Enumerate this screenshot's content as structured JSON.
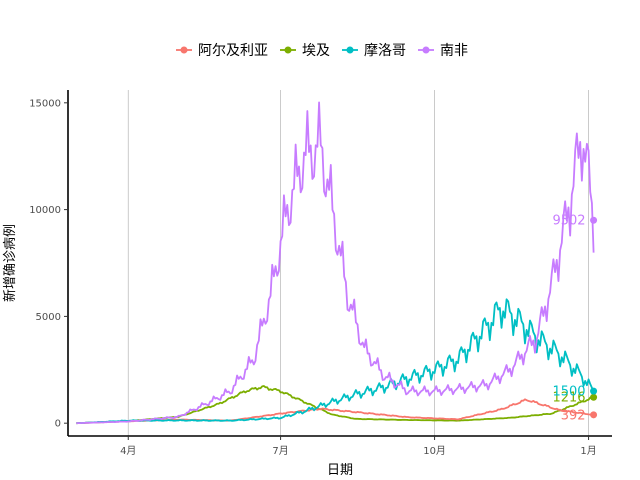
{
  "chart_data": {
    "type": "line",
    "xlabel": "日期",
    "ylabel": "新增确诊病例",
    "x_range": [
      "2020-02-25",
      "2021-01-15"
    ],
    "ylim": [
      -600,
      15600
    ],
    "y_ticks": [
      0,
      5000,
      10000,
      15000
    ],
    "x_ticks": [
      {
        "date": "2020-04-01",
        "label": "4月"
      },
      {
        "date": "2020-07-01",
        "label": "7月"
      },
      {
        "date": "2020-10-01",
        "label": "10月"
      },
      {
        "date": "2021-01-01",
        "label": "1月"
      }
    ],
    "grid": "vertical-major",
    "legend": {
      "position": "top"
    },
    "series": [
      {
        "name": "阿尔及利亚",
        "color": "#F8766D",
        "end_label": "392",
        "points": [
          [
            "2020-03-01",
            0
          ],
          [
            "2020-04-01",
            90
          ],
          [
            "2020-05-01",
            170
          ],
          [
            "2020-06-01",
            120
          ],
          [
            "2020-07-01",
            450
          ],
          [
            "2020-07-25",
            675
          ],
          [
            "2020-08-15",
            520
          ],
          [
            "2020-09-15",
            280
          ],
          [
            "2020-10-15",
            180
          ],
          [
            "2020-11-10",
            650
          ],
          [
            "2020-11-25",
            1100
          ],
          [
            "2020-12-15",
            600
          ],
          [
            "2021-01-04",
            392
          ]
        ]
      },
      {
        "name": "埃及",
        "color": "#7CAE00",
        "end_label": "1216",
        "points": [
          [
            "2020-03-01",
            0
          ],
          [
            "2020-04-01",
            100
          ],
          [
            "2020-05-01",
            300
          ],
          [
            "2020-05-25",
            900
          ],
          [
            "2020-06-10",
            1500
          ],
          [
            "2020-06-20",
            1700
          ],
          [
            "2020-07-01",
            1500
          ],
          [
            "2020-07-15",
            1000
          ],
          [
            "2020-08-01",
            400
          ],
          [
            "2020-08-15",
            200
          ],
          [
            "2020-09-15",
            150
          ],
          [
            "2020-10-15",
            120
          ],
          [
            "2020-11-15",
            250
          ],
          [
            "2020-12-10",
            450
          ],
          [
            "2020-12-25",
            900
          ],
          [
            "2021-01-04",
            1216
          ]
        ]
      },
      {
        "name": "摩洛哥",
        "color": "#00BFC4",
        "end_label": "1500",
        "points": [
          [
            "2020-03-01",
            0
          ],
          [
            "2020-04-01",
            120
          ],
          [
            "2020-05-01",
            130
          ],
          [
            "2020-06-01",
            120
          ],
          [
            "2020-07-01",
            250
          ],
          [
            "2020-07-15",
            550
          ],
          [
            "2020-08-01",
            1000
          ],
          [
            "2020-08-15",
            1350
          ],
          [
            "2020-09-01",
            1700
          ],
          [
            "2020-09-15",
            2100
          ],
          [
            "2020-10-01",
            2500
          ],
          [
            "2020-10-15",
            3000
          ],
          [
            "2020-11-01",
            4500
          ],
          [
            "2020-11-10",
            5400
          ],
          [
            "2020-11-20",
            4800
          ],
          [
            "2020-12-01",
            4000
          ],
          [
            "2020-12-15",
            3200
          ],
          [
            "2020-12-28",
            2200
          ],
          [
            "2021-01-04",
            1500
          ]
        ]
      },
      {
        "name": "南非",
        "color": "#C77CFF",
        "end_label": "9502",
        "points": [
          [
            "2020-03-01",
            0
          ],
          [
            "2020-04-01",
            80
          ],
          [
            "2020-05-01",
            300
          ],
          [
            "2020-05-20",
            1000
          ],
          [
            "2020-06-01",
            1500
          ],
          [
            "2020-06-15",
            3000
          ],
          [
            "2020-06-25",
            6000
          ],
          [
            "2020-07-05",
            10000
          ],
          [
            "2020-07-15",
            12500
          ],
          [
            "2020-07-25",
            13000
          ],
          [
            "2020-08-01",
            10000
          ],
          [
            "2020-08-10",
            6000
          ],
          [
            "2020-08-20",
            3500
          ],
          [
            "2020-09-01",
            2200
          ],
          [
            "2020-09-15",
            1500
          ],
          [
            "2020-10-01",
            1500
          ],
          [
            "2020-10-15",
            1600
          ],
          [
            "2020-11-01",
            1800
          ],
          [
            "2020-11-15",
            2500
          ],
          [
            "2020-12-01",
            4000
          ],
          [
            "2020-12-10",
            6500
          ],
          [
            "2020-12-20",
            10000
          ],
          [
            "2020-12-28",
            13500
          ],
          [
            "2021-01-02",
            11000
          ],
          [
            "2021-01-04",
            9502
          ]
        ]
      }
    ]
  }
}
